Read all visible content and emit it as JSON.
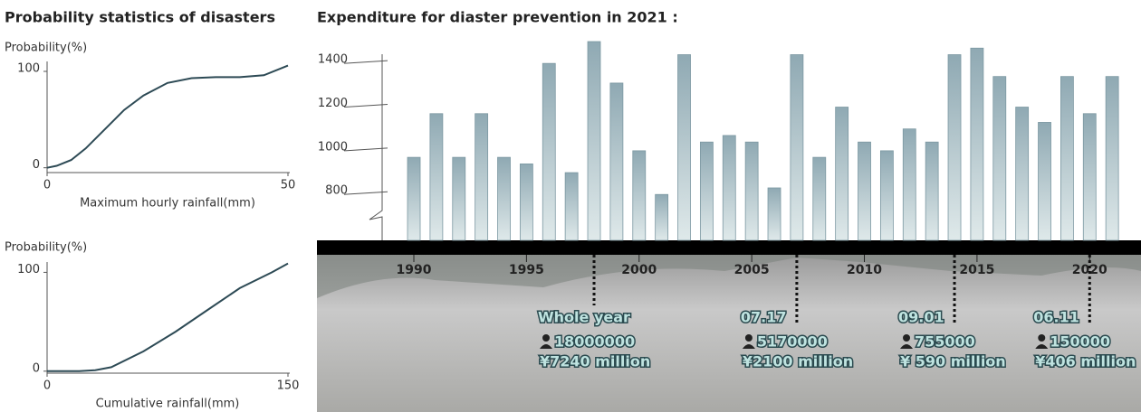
{
  "chart_data": [
    {
      "type": "line",
      "title": "Probability statistics of disasters",
      "ylabel": "Probability(%)",
      "xlabel": "Maximum hourly rainfall(mm)",
      "x": [
        0,
        2,
        5,
        8,
        10,
        13,
        16,
        20,
        25,
        30,
        35,
        40,
        45,
        50
      ],
      "values": [
        0,
        2,
        8,
        20,
        30,
        45,
        60,
        75,
        88,
        93,
        94,
        94,
        96,
        106
      ],
      "color": "#2d4a55",
      "xlim": [
        0,
        50
      ],
      "ylim": [
        -5,
        115
      ],
      "xticks": [
        0,
        50
      ],
      "yticks": [
        0,
        100
      ]
    },
    {
      "type": "line",
      "ylabel": "Probability(%)",
      "xlabel": "Cumulative rainfall(mm)",
      "x": [
        0,
        20,
        30,
        40,
        60,
        80,
        100,
        120,
        140,
        150
      ],
      "values": [
        0,
        0,
        1,
        4,
        20,
        40,
        62,
        84,
        100,
        109
      ],
      "color": "#2d4a55",
      "xlim": [
        0,
        150
      ],
      "ylim": [
        -2,
        115
      ],
      "xticks": [
        0,
        150
      ],
      "yticks": [
        0,
        100
      ]
    },
    {
      "type": "bar",
      "title": "Expenditure for diaster prevention in 2021 :",
      "x": [
        1990,
        1991,
        1992,
        1993,
        1994,
        1995,
        1996,
        1997,
        1998,
        1999,
        2000,
        2001,
        2002,
        2003,
        2004,
        2005,
        2006,
        2007,
        2008,
        2009,
        2010,
        2011,
        2012,
        2013,
        2014,
        2015,
        2016,
        2017,
        2018,
        2019,
        2020,
        2021
      ],
      "values": [
        970,
        1170,
        970,
        1170,
        970,
        940,
        1400,
        900,
        1500,
        1310,
        1000,
        800,
        1440,
        1040,
        1070,
        1040,
        830,
        1440,
        970,
        1200,
        1040,
        1000,
        1100,
        1040,
        1440,
        1470,
        1340,
        1200,
        1130,
        1340,
        1170,
        1340
      ],
      "color": "#8fa9b3",
      "xlim": [
        1986.1,
        2022.2
      ],
      "ylim": [
        590,
        1500
      ],
      "xticks": [
        1990,
        1995,
        2000,
        2005,
        2010,
        2015,
        2020
      ],
      "yticks": [
        800,
        1000,
        1200,
        1400
      ],
      "annotations": [
        {
          "x": 1998,
          "date": "Whole year",
          "people": "18000000",
          "cost": "¥7240 million"
        },
        {
          "x": 2007,
          "date": "07.17",
          "people": "5170000",
          "cost": "¥2100 million"
        },
        {
          "x": 2014,
          "date": "09.01",
          "people": "755000",
          "cost": "¥ 590 million"
        },
        {
          "x": 2020,
          "date": "06.11",
          "people": "150000",
          "cost": "¥406 million"
        }
      ]
    }
  ]
}
